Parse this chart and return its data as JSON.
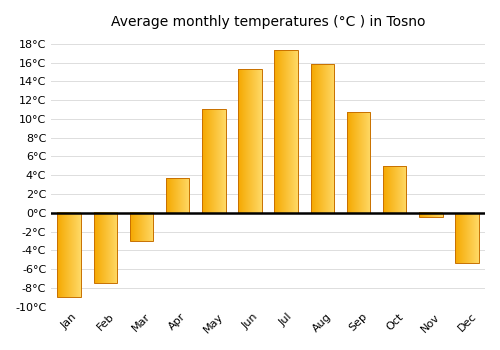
{
  "months": [
    "Jan",
    "Feb",
    "Mar",
    "Apr",
    "May",
    "Jun",
    "Jul",
    "Aug",
    "Sep",
    "Oct",
    "Nov",
    "Dec"
  ],
  "temperatures": [
    -9,
    -7.5,
    -3,
    3.7,
    11,
    15.3,
    17.3,
    15.8,
    10.7,
    5,
    -0.5,
    -5.3
  ],
  "bar_color_left": "#F5A800",
  "bar_color_right": "#FFD966",
  "bar_edge_color": "#C87000",
  "title": "Average monthly temperatures (°C ) in Tosno",
  "ylim": [
    -10,
    19
  ],
  "yticks": [
    -10,
    -8,
    -6,
    -4,
    -2,
    0,
    2,
    4,
    6,
    8,
    10,
    12,
    14,
    16,
    18
  ],
  "background_color": "#ffffff",
  "grid_color": "#dddddd",
  "zero_line_color": "#000000",
  "title_fontsize": 10,
  "tick_fontsize": 8
}
